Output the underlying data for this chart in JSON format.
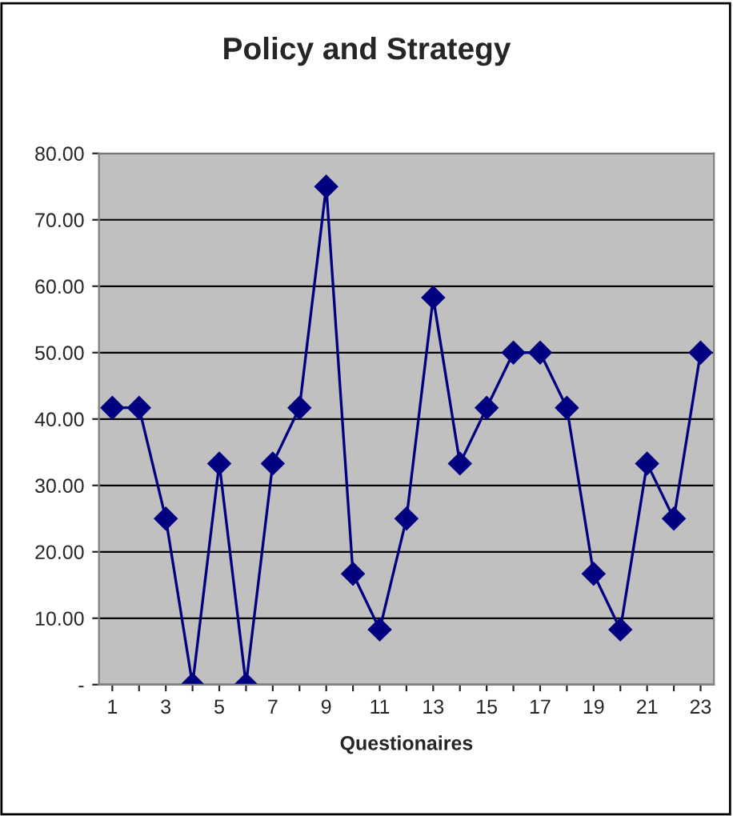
{
  "chart_data": {
    "type": "line",
    "title": "Policy and Strategy",
    "xlabel": "Questionaires",
    "categories": [
      "1",
      null,
      "3",
      null,
      "5",
      null,
      "7",
      null,
      "9",
      null,
      "11",
      null,
      "13",
      null,
      "15",
      null,
      "17",
      null,
      "19",
      null,
      "21",
      null,
      "23"
    ],
    "series": [
      {
        "color": "#000080",
        "values": [
          41.7,
          41.7,
          25.0,
          0.0,
          33.3,
          0.0,
          33.3,
          41.7,
          75.0,
          16.7,
          8.3,
          25.0,
          58.3,
          33.3,
          41.7,
          50.0,
          50.0,
          41.7,
          16.7,
          8.3,
          33.3,
          25.0,
          50.0
        ]
      }
    ],
    "ylim": [
      0,
      80
    ],
    "yticks": [
      {
        "value": 0,
        "label": "-"
      },
      {
        "value": 10,
        "label": "10.00"
      },
      {
        "value": 20,
        "label": "20.00"
      },
      {
        "value": 30,
        "label": "30.00"
      },
      {
        "value": 40,
        "label": "40.00"
      },
      {
        "value": 50,
        "label": "50.00"
      },
      {
        "value": 60,
        "label": "60.00"
      },
      {
        "value": 70,
        "label": "70.00"
      },
      {
        "value": 80,
        "label": "80.00"
      }
    ],
    "grid": "y",
    "marker": "diamond",
    "line_style": "solid"
  }
}
